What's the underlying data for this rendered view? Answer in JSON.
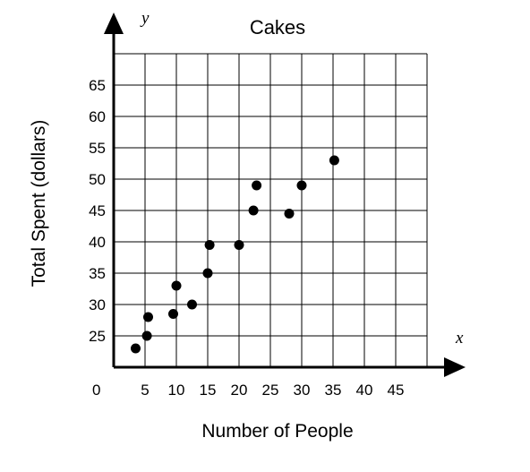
{
  "chart_data": {
    "type": "scatter",
    "title": "Cakes",
    "xlabel": "Number of People",
    "ylabel": "Total Spent (dollars)",
    "x_axis_var": "x",
    "y_axis_var": "y",
    "origin_label": "0",
    "xlim": [
      0,
      50
    ],
    "ylim": [
      20,
      70
    ],
    "x_ticks": [
      5,
      10,
      15,
      20,
      25,
      30,
      35,
      40,
      45
    ],
    "y_ticks": [
      25,
      30,
      35,
      40,
      45,
      50,
      55,
      60,
      65
    ],
    "grid": true,
    "series": [
      {
        "points": [
          {
            "x": 3.5,
            "y": 23
          },
          {
            "x": 5.3,
            "y": 25
          },
          {
            "x": 5.5,
            "y": 28
          },
          {
            "x": 9.5,
            "y": 28.5
          },
          {
            "x": 10,
            "y": 33
          },
          {
            "x": 12.5,
            "y": 30
          },
          {
            "x": 15,
            "y": 35
          },
          {
            "x": 15.3,
            "y": 39.5
          },
          {
            "x": 20,
            "y": 39.5
          },
          {
            "x": 22.3,
            "y": 45
          },
          {
            "x": 22.8,
            "y": 49
          },
          {
            "x": 28,
            "y": 44.5
          },
          {
            "x": 30,
            "y": 49
          },
          {
            "x": 35.2,
            "y": 53
          }
        ]
      }
    ]
  }
}
